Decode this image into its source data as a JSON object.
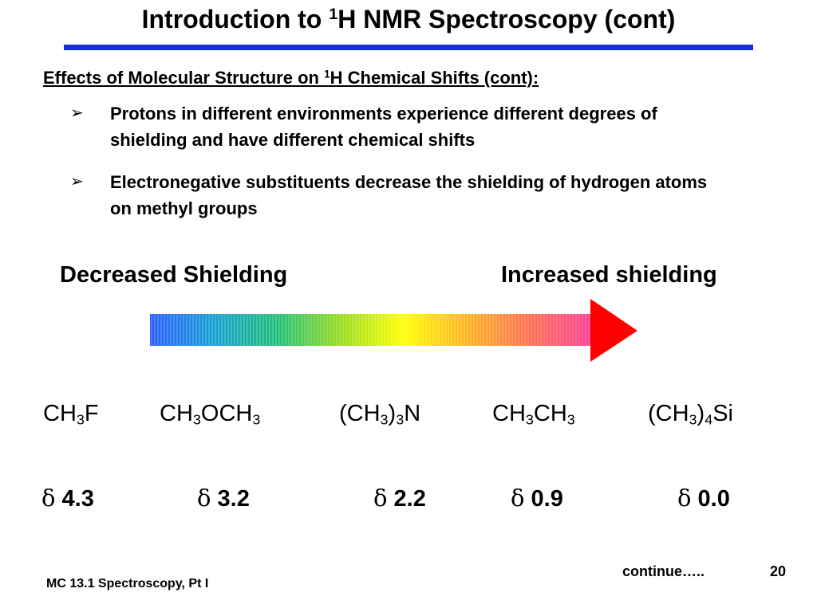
{
  "title": {
    "prefix": "Introduction to ",
    "sup": "1",
    "suffix": "H NMR Spectroscopy (cont)"
  },
  "subtitle": {
    "prefix": "Effects of Molecular Structure on ",
    "sup": "1",
    "suffix": "H Chemical Shifts (cont):"
  },
  "bullets": [
    {
      "marker": "➢",
      "text": "Protons in different environments experience different degrees of shielding and have different chemical shifts"
    },
    {
      "marker": "➢",
      "text": "Electronegative substituents decrease the shielding of hydrogen atoms on methyl groups"
    }
  ],
  "shielding": {
    "left_label": "Decreased Shielding",
    "right_label": "Increased shielding",
    "colors": [
      "#2b5cff",
      "#14a0d2",
      "#1ebe78",
      "#96dc1e",
      "#ffff00",
      "#ffb41e",
      "#ff6e50",
      "#ff3c96"
    ],
    "arrowhead_color": "#ff0000"
  },
  "compounds": [
    {
      "parts": [
        "CH",
        "3",
        "F"
      ]
    },
    {
      "parts": [
        "CH",
        "3",
        "OCH",
        "3"
      ]
    },
    {
      "parts": [
        "(CH",
        "3",
        ")",
        "3",
        "N"
      ]
    },
    {
      "parts": [
        "CH",
        "3",
        "CH",
        "3"
      ]
    },
    {
      "parts": [
        "(CH",
        "3",
        ")",
        "4",
        "Si"
      ]
    }
  ],
  "shifts": [
    {
      "symbol": "δ",
      "value": "4.3"
    },
    {
      "symbol": "δ",
      "value": "3.2"
    },
    {
      "symbol": "δ",
      "value": "2.2"
    },
    {
      "symbol": "δ",
      "value": "0.9"
    },
    {
      "symbol": "δ",
      "value": "0.0"
    }
  ],
  "footer": {
    "course": "MC 13.1 Spectroscopy, Pt I",
    "continue": "continue…..",
    "page_number": "20"
  }
}
